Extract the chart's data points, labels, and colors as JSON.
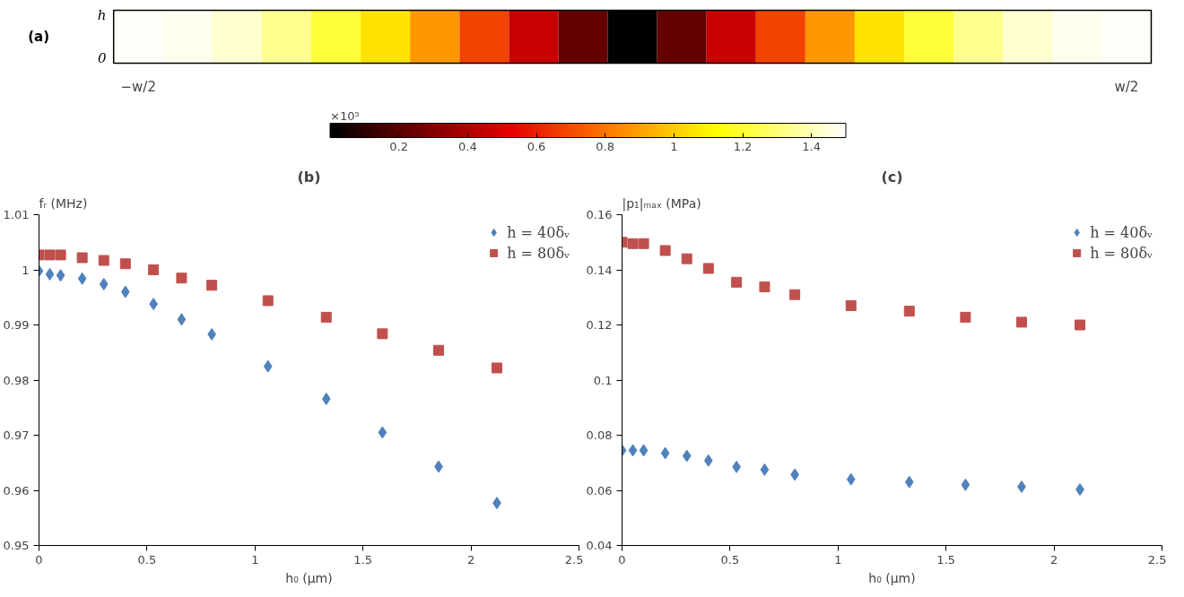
{
  "chart_data": [
    {
      "type": "heatmap",
      "title": "(a)",
      "categories": [
        "−w/2",
        null,
        null,
        null,
        null,
        null,
        null,
        null,
        null,
        null,
        null,
        null,
        null,
        null,
        null,
        null,
        null,
        null,
        null,
        null,
        "w/2"
      ],
      "y_categories": [
        null
      ],
      "cells": [
        [
          1.5,
          1.48,
          1.43,
          1.34,
          1.21,
          1.06,
          0.88,
          0.68,
          0.46,
          0.23,
          0,
          0.23,
          0.46,
          0.68,
          0.88,
          1.06,
          1.21,
          1.34,
          1.43,
          1.48,
          1.5
        ]
      ],
      "clim": [
        0,
        1.5
      ],
      "cticks": [
        0.2,
        0.4,
        0.6,
        0.8,
        1,
        1.2,
        1.4
      ],
      "clabel": "×10⁵",
      "annotations": [
        "h",
        "0"
      ]
    },
    {
      "type": "scatter",
      "title": "(b)",
      "xlabel": "h₀ (µm)",
      "ylabel": "fᵣ (MHz)",
      "xlim": [
        0,
        2.5
      ],
      "xticks": [
        0,
        0.5,
        1,
        1.5,
        2,
        2.5
      ],
      "ylim": [
        0.95,
        1.01
      ],
      "yticks": [
        0.95,
        0.96,
        0.97,
        0.98,
        0.99,
        1,
        1.01
      ],
      "grid": false,
      "legend": "top right",
      "x": [
        0,
        0.05,
        0.1,
        0.2,
        0.3,
        0.4,
        0.53,
        0.66,
        0.8,
        1.06,
        1.33,
        1.59,
        1.85,
        2.12
      ],
      "series": [
        {
          "name": "h = 40δᵥ",
          "color": "#4f81bd",
          "marker": "diamond",
          "values": [
            0.9998,
            0.9992,
            0.999,
            0.9984,
            0.9974,
            0.996,
            0.9938,
            0.991,
            0.9883,
            0.9825,
            0.9766,
            0.9705,
            0.9643,
            0.9577
          ]
        },
        {
          "name": "h = 80δᵥ",
          "color": "#c0504d",
          "marker": "square",
          "values": [
            1.0027,
            1.0027,
            1.0027,
            1.0022,
            1.0017,
            1.0011,
            1.0,
            0.9985,
            0.9972,
            0.9944,
            0.9914,
            0.9884,
            0.9854,
            0.9822
          ]
        }
      ]
    },
    {
      "type": "scatter",
      "title": "(c)",
      "xlabel": "h₀ (µm)",
      "ylabel": "|p₁|ₘₐₓ (MPa)",
      "xlim": [
        0,
        2.5
      ],
      "xticks": [
        0,
        0.5,
        1,
        1.5,
        2,
        2.5
      ],
      "ylim": [
        0.04,
        0.16
      ],
      "yticks": [
        0.04,
        0.06,
        0.08,
        0.1,
        0.12,
        0.14,
        0.16
      ],
      "grid": false,
      "legend": "top right",
      "x": [
        0,
        0.05,
        0.1,
        0.2,
        0.3,
        0.4,
        0.53,
        0.66,
        0.8,
        1.06,
        1.33,
        1.59,
        1.85,
        2.12
      ],
      "series": [
        {
          "name": "h = 40δᵥ",
          "color": "#4f81bd",
          "marker": "diamond",
          "values": [
            0.0745,
            0.0745,
            0.0745,
            0.0735,
            0.0725,
            0.0708,
            0.0685,
            0.0675,
            0.0657,
            0.064,
            0.063,
            0.062,
            0.0613,
            0.0603
          ]
        },
        {
          "name": "h = 80δᵥ",
          "color": "#c0504d",
          "marker": "square",
          "values": [
            0.15,
            0.1495,
            0.1495,
            0.147,
            0.144,
            0.1405,
            0.1355,
            0.1338,
            0.131,
            0.127,
            0.125,
            0.1228,
            0.121,
            0.12
          ]
        }
      ]
    }
  ]
}
